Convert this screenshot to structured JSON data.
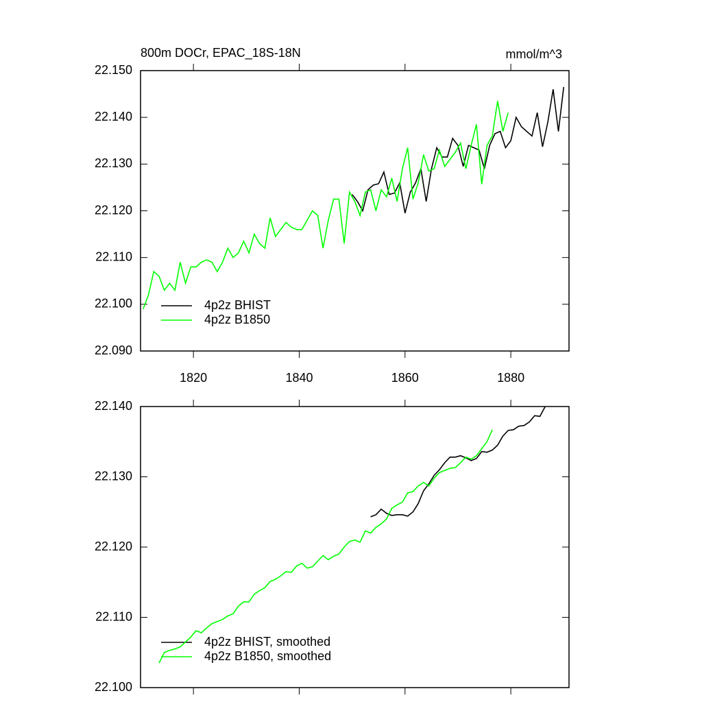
{
  "chart_data": [
    {
      "type": "line",
      "title": "800m DOCr, EPAC_18S-18N",
      "subtitle": "mmol/m^3",
      "legend": "lower left",
      "xlim": [
        1810,
        1891
      ],
      "xticks": [
        1820,
        1840,
        1860,
        1880
      ],
      "ylim": [
        22.09,
        22.15
      ],
      "yticks": [
        {
          "value": 22.09,
          "label": "22.090"
        },
        {
          "value": 22.1,
          "label": "22.100"
        },
        {
          "value": 22.11,
          "label": "22.110"
        },
        {
          "value": 22.12,
          "label": "22.120"
        },
        {
          "value": 22.13,
          "label": "22.130"
        },
        {
          "value": 22.14,
          "label": "22.140"
        },
        {
          "value": 22.15,
          "label": "22.150"
        }
      ],
      "series": [
        {
          "name": "4p2z BHIST",
          "color": "#000000",
          "x": [
            1850,
            1851,
            1852,
            1853,
            1854,
            1855,
            1856,
            1857,
            1858,
            1859,
            1860,
            1861,
            1862,
            1863,
            1864,
            1865,
            1866,
            1867,
            1868,
            1869,
            1870,
            1871,
            1872,
            1873,
            1874,
            1875,
            1876,
            1877,
            1878,
            1879,
            1880,
            1881,
            1882,
            1883,
            1884,
            1885,
            1886,
            1887,
            1888,
            1889,
            1890
          ],
          "values": [
            22.1235,
            22.122,
            22.12,
            22.1245,
            22.1255,
            22.1258,
            22.1283,
            22.1235,
            22.1238,
            22.126,
            22.1195,
            22.124,
            22.126,
            22.129,
            22.122,
            22.129,
            22.1335,
            22.1315,
            22.1315,
            22.1355,
            22.134,
            22.1295,
            22.134,
            22.1335,
            22.133,
            22.129,
            22.134,
            22.1365,
            22.137,
            22.1335,
            22.135,
            22.14,
            22.138,
            22.137,
            22.136,
            22.141,
            22.1337,
            22.139,
            22.146,
            22.137,
            22.1465
          ]
        },
        {
          "name": "4p2z B1850",
          "color": "#00ff00",
          "x": [
            1810.5,
            1811.5,
            1812.5,
            1813.5,
            1814.5,
            1815.5,
            1816.5,
            1817.5,
            1818.5,
            1819.5,
            1820.5,
            1821.5,
            1822.5,
            1823.5,
            1824.5,
            1825.5,
            1826.5,
            1827.5,
            1828.5,
            1829.5,
            1830.5,
            1831.5,
            1832.5,
            1833.5,
            1834.5,
            1835.5,
            1836.5,
            1837.5,
            1838.5,
            1839.5,
            1840.5,
            1841.5,
            1842.5,
            1843.5,
            1844.5,
            1845.5,
            1846.5,
            1847.5,
            1848.5,
            1849.5,
            1850.5,
            1851.5,
            1852.5,
            1853.5,
            1854.5,
            1855.5,
            1856.5,
            1857.5,
            1858.5,
            1859.5,
            1860.5,
            1861.5,
            1862.5,
            1863.5,
            1864.5,
            1865.5,
            1866.5,
            1867.5,
            1868.5,
            1869.5,
            1870.5,
            1871.5,
            1872.5,
            1873.5,
            1874.5,
            1875.5,
            1876.5,
            1877.5,
            1878.5,
            1879.5
          ],
          "values": [
            22.099,
            22.102,
            22.107,
            22.106,
            22.103,
            22.1045,
            22.103,
            22.109,
            22.1045,
            22.108,
            22.108,
            22.109,
            22.1095,
            22.109,
            22.107,
            22.109,
            22.112,
            22.11,
            22.111,
            22.1135,
            22.111,
            22.115,
            22.113,
            22.112,
            22.1185,
            22.1145,
            22.116,
            22.1175,
            22.1165,
            22.116,
            22.116,
            22.118,
            22.12,
            22.119,
            22.112,
            22.118,
            22.1225,
            22.1225,
            22.113,
            22.124,
            22.122,
            22.119,
            22.124,
            22.1245,
            22.12,
            22.1245,
            22.123,
            22.127,
            22.122,
            22.129,
            22.1335,
            22.1225,
            22.126,
            22.132,
            22.1285,
            22.129,
            22.133,
            22.1295,
            22.131,
            22.1325,
            22.1345,
            22.129,
            22.134,
            22.1385,
            22.1257,
            22.134,
            22.136,
            22.1435,
            22.137,
            22.141
          ]
        }
      ]
    },
    {
      "type": "line",
      "legend": "lower left",
      "xlim": [
        1810,
        1891
      ],
      "xticks": [
        1820,
        1840,
        1860,
        1880
      ],
      "ylim": [
        22.1,
        22.14
      ],
      "yticks": [
        {
          "value": 22.1,
          "label": "22.100"
        },
        {
          "value": 22.11,
          "label": "22.110"
        },
        {
          "value": 22.12,
          "label": "22.120"
        },
        {
          "value": 22.13,
          "label": "22.130"
        },
        {
          "value": 22.14,
          "label": "22.140"
        }
      ],
      "series": [
        {
          "name": "4p2z BHIST, smoothed",
          "color": "#000000",
          "x": [
            1853.5,
            1854.5,
            1855.5,
            1856.5,
            1857.5,
            1858.5,
            1859.5,
            1860.5,
            1861.5,
            1862.5,
            1863.5,
            1864.5,
            1865.5,
            1866.5,
            1867.5,
            1868.5,
            1869.5,
            1870.5,
            1871.5,
            1872.5,
            1873.5,
            1874.5,
            1875.5,
            1876.5,
            1877.5,
            1878.5,
            1879.5,
            1880.5,
            1881.5,
            1882.5,
            1883.5,
            1884.5,
            1885.5,
            1886.5
          ],
          "values": [
            22.1243,
            22.1246,
            22.1254,
            22.1248,
            22.1245,
            22.1246,
            22.1246,
            22.1244,
            22.125,
            22.1262,
            22.128,
            22.129,
            22.1302,
            22.131,
            22.132,
            22.1328,
            22.1328,
            22.133,
            22.1327,
            22.1323,
            22.1326,
            22.1336,
            22.1335,
            22.1338,
            22.1345,
            22.1358,
            22.1366,
            22.1367,
            22.1372,
            22.1373,
            22.1378,
            22.1387,
            22.1386,
            22.14
          ]
        },
        {
          "name": "4p2z B1850, smoothed",
          "color": "#00ff00",
          "x": [
            1813.5,
            1814.5,
            1815.5,
            1816.5,
            1817.5,
            1818.5,
            1819.5,
            1820.5,
            1821.5,
            1822.5,
            1823.5,
            1824.5,
            1825.5,
            1826.5,
            1827.5,
            1828.5,
            1829.5,
            1830.5,
            1831.5,
            1832.5,
            1833.5,
            1834.5,
            1835.5,
            1836.5,
            1837.5,
            1838.5,
            1839.5,
            1840.5,
            1841.5,
            1842.5,
            1843.5,
            1844.5,
            1845.5,
            1846.5,
            1847.5,
            1848.5,
            1849.5,
            1850.5,
            1851.5,
            1852.5,
            1853.5,
            1854.5,
            1855.5,
            1856.5,
            1857.5,
            1858.5,
            1859.5,
            1860.5,
            1861.5,
            1862.5,
            1863.5,
            1864.5,
            1865.5,
            1866.5,
            1867.5,
            1868.5,
            1869.5,
            1870.5,
            1871.5,
            1872.5,
            1873.5,
            1874.5,
            1875.5,
            1876.5
          ],
          "values": [
            22.1035,
            22.105,
            22.1053,
            22.1055,
            22.1058,
            22.1065,
            22.1072,
            22.1081,
            22.1078,
            22.1085,
            22.1091,
            22.1094,
            22.1097,
            22.1102,
            22.1105,
            22.1116,
            22.1122,
            22.1122,
            22.1133,
            22.1138,
            22.1142,
            22.1151,
            22.1154,
            22.1159,
            22.1165,
            22.1164,
            22.1173,
            22.1177,
            22.117,
            22.1172,
            22.118,
            22.1188,
            22.1182,
            22.1187,
            22.119,
            22.12,
            22.1208,
            22.121,
            22.1207,
            22.1223,
            22.122,
            22.1228,
            22.1233,
            22.124,
            22.1255,
            22.126,
            22.1264,
            22.1277,
            22.1279,
            22.1287,
            22.1292,
            22.1287,
            22.1298,
            22.1306,
            22.1309,
            22.1312,
            22.1313,
            22.132,
            22.1328,
            22.1325,
            22.133,
            22.134,
            22.135,
            22.1367
          ]
        }
      ]
    }
  ]
}
